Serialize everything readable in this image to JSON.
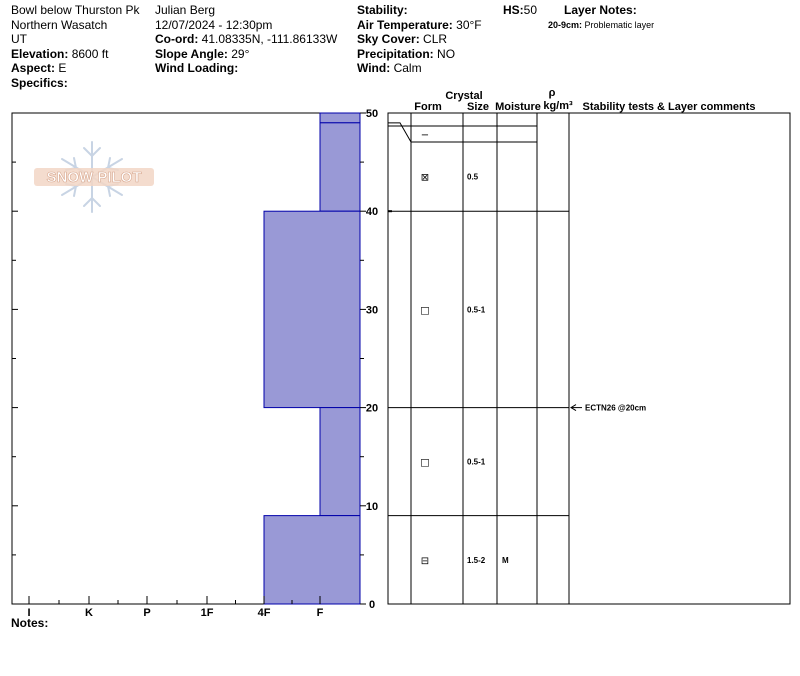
{
  "header": {
    "col1": {
      "location": "Bowl below Thurston Pk",
      "range": "Northern Wasatch",
      "state": "UT",
      "elevation_label": "Elevation:",
      "elevation_value": "8600 ft",
      "aspect_label": "Aspect:",
      "aspect_value": "E",
      "specifics_label": "Specifics:"
    },
    "col2": {
      "observer": "Julian Berg",
      "datetime": "12/07/2024 - 12:30pm",
      "coord_label": "Co-ord:",
      "coord_value": "41.08335N, -111.86133W",
      "slope_label": "Slope Angle:",
      "slope_value": "29°",
      "wind_loading_label": "Wind Loading:"
    },
    "col3": {
      "stability_label": "Stability:",
      "air_temp_label": "Air Temperature:",
      "air_temp_value": "30°F",
      "sky_label": "Sky Cover:",
      "sky_value": "CLR",
      "precip_label": "Precipitation:",
      "precip_value": "NO",
      "wind_label": "Wind:",
      "wind_value": "Calm"
    },
    "hs_label": "HS:",
    "hs_value": "50",
    "layer_notes_label": "Layer Notes:",
    "layer_note_range": "20-9cm:",
    "layer_note_text": "Problematic layer"
  },
  "watermark": {
    "text": "SNOW PILOT",
    "icon": "snowflake-icon"
  },
  "columns": {
    "crystal": "Crystal",
    "form": "Form",
    "size": "Size",
    "moisture": "Moisture",
    "rho": "ρ",
    "density": "kg/m³",
    "comments": "Stability tests & Layer comments"
  },
  "notes_label": "Notes:",
  "chart_data": {
    "type": "bar",
    "title": "",
    "y_axis": {
      "range": [
        0,
        50
      ],
      "ticks": [
        0,
        10,
        20,
        30,
        40,
        50
      ],
      "unit": "cm"
    },
    "hardness_scale": [
      "I",
      "K",
      "P",
      "1F",
      "4F",
      "F"
    ],
    "colors": {
      "fill": "#9999d6",
      "stroke": "#0000aa"
    },
    "layers": [
      {
        "top": 50,
        "bottom": 49,
        "hardness": "F",
        "form": "−",
        "size": "",
        "moisture": ""
      },
      {
        "top": 49,
        "bottom": 40,
        "hardness": "F",
        "form": "⊠",
        "size": "0.5",
        "moisture": ""
      },
      {
        "top": 40,
        "bottom": 20,
        "hardness": "4F",
        "form": "□",
        "size": "0.5-1",
        "moisture": ""
      },
      {
        "top": 20,
        "bottom": 9,
        "hardness": "F",
        "form": "□",
        "size": "0.5-1",
        "moisture": ""
      },
      {
        "top": 9,
        "bottom": 0,
        "hardness": "4F",
        "form": "⊟",
        "size": "1.5-2",
        "moisture": "M"
      }
    ],
    "tests": [
      {
        "depth": 20,
        "label": "ECTN26 @20cm"
      }
    ]
  }
}
